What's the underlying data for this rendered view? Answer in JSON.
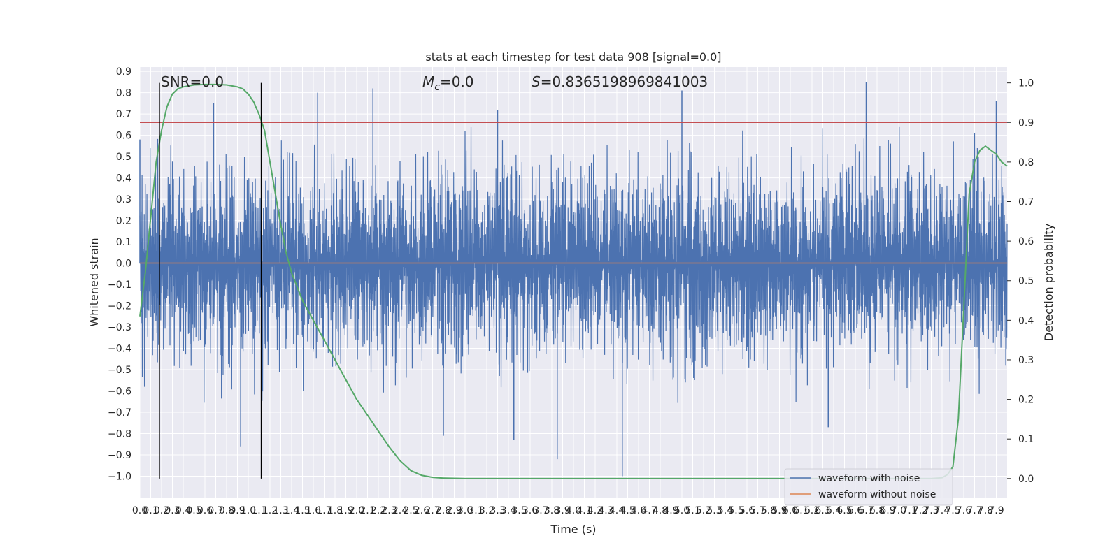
{
  "chart_data": {
    "type": "line",
    "title": "stats at each timestep for test data 908 [signal=0.0]",
    "xlabel": "Time (s)",
    "ylabel": "Whitened strain",
    "y2label": "Detection probability",
    "xlim": [
      0.0,
      8.0
    ],
    "ylim": [
      -1.1,
      0.92
    ],
    "y2lim": [
      -0.048,
      1.04
    ],
    "grid": true,
    "legend_position": "lower-right",
    "x_ticks": [
      "0.0",
      "0.1",
      "0.2",
      "0.3",
      "0.4",
      "0.5",
      "0.6",
      "0.7",
      "0.8",
      "0.9",
      "1.0",
      "1.1",
      "1.2",
      "1.3",
      "1.4",
      "1.5",
      "1.6",
      "1.7",
      "1.8",
      "1.9",
      "2.0",
      "2.1",
      "2.2",
      "2.3",
      "2.4",
      "2.5",
      "2.6",
      "2.7",
      "2.8",
      "2.9",
      "3.0",
      "3.1",
      "3.2",
      "3.3",
      "3.4",
      "3.5",
      "3.6",
      "3.7",
      "3.8",
      "3.9",
      "4.0",
      "4.1",
      "4.2",
      "4.3",
      "4.4",
      "4.5",
      "4.6",
      "4.7",
      "4.8",
      "4.9",
      "5.0",
      "5.1",
      "5.2",
      "5.3",
      "5.4",
      "5.5",
      "5.6",
      "5.7",
      "5.8",
      "5.9",
      "6.0",
      "6.1",
      "6.2",
      "6.3",
      "6.4",
      "6.5",
      "6.6",
      "6.7",
      "6.8",
      "6.9",
      "7.0",
      "7.1",
      "7.2",
      "7.3",
      "7.4",
      "7.5",
      "7.6",
      "7.7",
      "7.8",
      "7.9"
    ],
    "y_ticks": [
      "0.9",
      "0.8",
      "0.7",
      "0.6",
      "0.5",
      "0.4",
      "0.3",
      "0.2",
      "0.1",
      "0.0",
      "−0.1",
      "−0.2",
      "−0.3",
      "−0.4",
      "−0.5",
      "−0.6",
      "−0.7",
      "−0.8",
      "−0.9",
      "−1.0"
    ],
    "y2_ticks": [
      "1.0",
      "0.9",
      "0.8",
      "0.7",
      "0.6",
      "0.5",
      "0.4",
      "0.3",
      "0.2",
      "0.1",
      "0.0"
    ],
    "annotations": {
      "snr": "SNR=0.0",
      "mc_symbol": "M",
      "mc_sub": "c",
      "mc_value": "=0.0",
      "s_symbol": "S",
      "s_value": "=0.8365198969841003"
    },
    "vertical_markers_x": [
      0.18,
      1.12
    ],
    "threshold_line": {
      "y2": 0.9,
      "color": "#c44e52"
    },
    "series": [
      {
        "name": "waveform with noise",
        "color": "#4c72b0",
        "axis": "left",
        "noise_envelope": {
          "amplitude": 0.5,
          "mean": 0.0
        },
        "notable_peaks": [
          {
            "x": 0.0,
            "y": 0.58
          },
          {
            "x": 0.68,
            "y": 0.75
          },
          {
            "x": 1.64,
            "y": 0.8
          },
          {
            "x": 2.15,
            "y": 0.82
          },
          {
            "x": 3.3,
            "y": 0.72
          },
          {
            "x": 5.0,
            "y": 0.81
          },
          {
            "x": 6.7,
            "y": 0.85
          },
          {
            "x": 7.9,
            "y": 0.76
          },
          {
            "x": 0.93,
            "y": -0.86
          },
          {
            "x": 3.85,
            "y": -0.92
          },
          {
            "x": 4.45,
            "y": -1.0
          },
          {
            "x": 3.45,
            "y": -0.83
          },
          {
            "x": 2.8,
            "y": -0.81
          },
          {
            "x": 6.35,
            "y": -0.77
          }
        ]
      },
      {
        "name": "waveform without noise",
        "color": "#dd8452",
        "axis": "left",
        "x": [
          0.0,
          8.0
        ],
        "y": [
          0.0,
          0.0
        ]
      },
      {
        "name": "detection probability",
        "color": "#55a868",
        "axis": "right",
        "x": [
          0.0,
          0.05,
          0.1,
          0.15,
          0.2,
          0.25,
          0.3,
          0.35,
          0.4,
          0.5,
          0.6,
          0.7,
          0.8,
          0.9,
          0.95,
          1.0,
          1.05,
          1.1,
          1.15,
          1.2,
          1.25,
          1.3,
          1.35,
          1.4,
          1.5,
          1.6,
          1.7,
          1.8,
          1.9,
          2.0,
          2.1,
          2.2,
          2.3,
          2.4,
          2.5,
          2.6,
          2.7,
          2.8,
          3.0,
          4.0,
          5.0,
          6.0,
          7.0,
          7.3,
          7.4,
          7.45,
          7.5,
          7.55,
          7.6,
          7.65,
          7.7,
          7.75,
          7.8,
          7.85,
          7.9,
          7.95,
          8.0
        ],
        "y": [
          0.41,
          0.52,
          0.66,
          0.8,
          0.88,
          0.94,
          0.972,
          0.985,
          0.99,
          0.995,
          0.996,
          0.996,
          0.995,
          0.99,
          0.985,
          0.972,
          0.952,
          0.92,
          0.88,
          0.8,
          0.72,
          0.64,
          0.57,
          0.52,
          0.45,
          0.4,
          0.35,
          0.3,
          0.25,
          0.2,
          0.16,
          0.12,
          0.08,
          0.045,
          0.02,
          0.008,
          0.003,
          0.001,
          0.0,
          0.0,
          0.0,
          0.0,
          0.0,
          0.0,
          0.002,
          0.01,
          0.03,
          0.15,
          0.43,
          0.72,
          0.8,
          0.83,
          0.84,
          0.83,
          0.82,
          0.8,
          0.79
        ]
      }
    ],
    "legend": [
      {
        "label": "waveform with noise",
        "color": "#4c72b0"
      },
      {
        "label": "waveform without noise",
        "color": "#dd8452"
      }
    ]
  }
}
